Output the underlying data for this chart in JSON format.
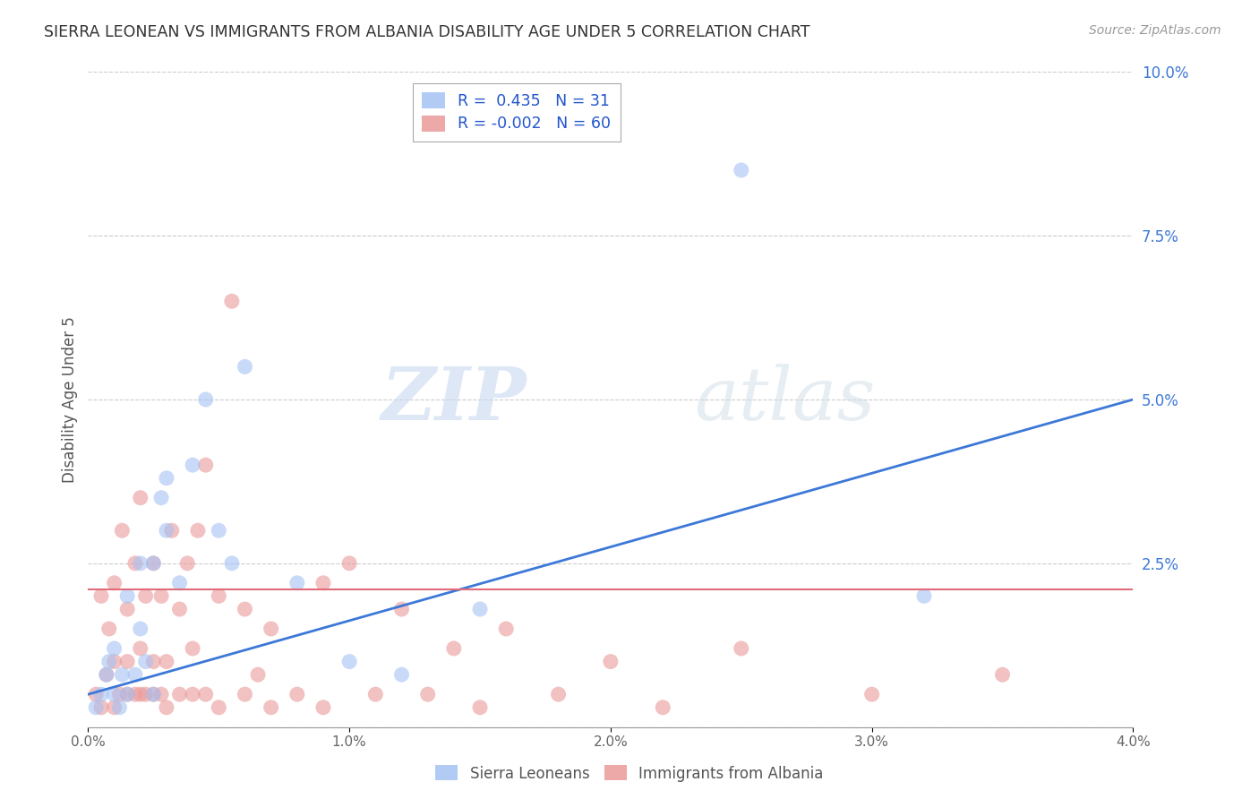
{
  "title": "SIERRA LEONEAN VS IMMIGRANTS FROM ALBANIA DISABILITY AGE UNDER 5 CORRELATION CHART",
  "source": "Source: ZipAtlas.com",
  "ylabel": "Disability Age Under 5",
  "xlim": [
    0.0,
    0.04
  ],
  "ylim": [
    0.0,
    0.1
  ],
  "xticks": [
    0.0,
    0.01,
    0.02,
    0.03,
    0.04
  ],
  "xtick_labels": [
    "0.0%",
    "1.0%",
    "2.0%",
    "3.0%",
    "4.0%"
  ],
  "yticks": [
    0.0,
    0.025,
    0.05,
    0.075,
    0.1
  ],
  "ytick_labels": [
    "",
    "2.5%",
    "5.0%",
    "7.5%",
    "10.0%"
  ],
  "R_blue": 0.435,
  "N_blue": 31,
  "R_pink": -0.002,
  "N_pink": 60,
  "blue_color": "#a4c2f4",
  "pink_color": "#ea9999",
  "blue_line_color": "#3c78d8",
  "pink_line_color": "#e06c7a",
  "watermark_zip": "ZIP",
  "watermark_atlas": "atlas",
  "legend_label_blue": "Sierra Leoneans",
  "legend_label_pink": "Immigrants from Albania",
  "blue_x": [
    0.0003,
    0.0005,
    0.0007,
    0.0008,
    0.001,
    0.001,
    0.0012,
    0.0013,
    0.0015,
    0.0015,
    0.0018,
    0.002,
    0.002,
    0.0022,
    0.0025,
    0.0025,
    0.0028,
    0.003,
    0.003,
    0.0035,
    0.004,
    0.0045,
    0.005,
    0.0055,
    0.006,
    0.008,
    0.01,
    0.012,
    0.015,
    0.025,
    0.032
  ],
  "blue_y": [
    0.003,
    0.005,
    0.008,
    0.01,
    0.005,
    0.012,
    0.003,
    0.008,
    0.005,
    0.02,
    0.008,
    0.015,
    0.025,
    0.01,
    0.005,
    0.025,
    0.035,
    0.03,
    0.038,
    0.022,
    0.04,
    0.05,
    0.03,
    0.025,
    0.055,
    0.022,
    0.01,
    0.008,
    0.018,
    0.085,
    0.02
  ],
  "pink_x": [
    0.0003,
    0.0005,
    0.0005,
    0.0007,
    0.0008,
    0.001,
    0.001,
    0.001,
    0.0012,
    0.0013,
    0.0015,
    0.0015,
    0.0015,
    0.0018,
    0.0018,
    0.002,
    0.002,
    0.002,
    0.0022,
    0.0022,
    0.0025,
    0.0025,
    0.0025,
    0.0028,
    0.0028,
    0.003,
    0.003,
    0.0032,
    0.0035,
    0.0035,
    0.0038,
    0.004,
    0.004,
    0.0042,
    0.0045,
    0.0045,
    0.005,
    0.005,
    0.0055,
    0.006,
    0.006,
    0.0065,
    0.007,
    0.007,
    0.008,
    0.009,
    0.009,
    0.01,
    0.011,
    0.012,
    0.013,
    0.014,
    0.015,
    0.016,
    0.018,
    0.02,
    0.022,
    0.025,
    0.03,
    0.035
  ],
  "pink_y": [
    0.005,
    0.003,
    0.02,
    0.008,
    0.015,
    0.003,
    0.01,
    0.022,
    0.005,
    0.03,
    0.005,
    0.01,
    0.018,
    0.005,
    0.025,
    0.005,
    0.012,
    0.035,
    0.005,
    0.02,
    0.005,
    0.01,
    0.025,
    0.005,
    0.02,
    0.003,
    0.01,
    0.03,
    0.005,
    0.018,
    0.025,
    0.005,
    0.012,
    0.03,
    0.005,
    0.04,
    0.003,
    0.02,
    0.065,
    0.005,
    0.018,
    0.008,
    0.003,
    0.015,
    0.005,
    0.003,
    0.022,
    0.025,
    0.005,
    0.018,
    0.005,
    0.012,
    0.003,
    0.015,
    0.005,
    0.01,
    0.003,
    0.012,
    0.005,
    0.008
  ],
  "blue_line_x0": 0.0,
  "blue_line_y0": 0.005,
  "blue_line_x1": 0.04,
  "blue_line_y1": 0.05,
  "pink_line_x0": 0.0,
  "pink_line_y0": 0.021,
  "pink_line_x1": 0.04,
  "pink_line_y1": 0.021
}
